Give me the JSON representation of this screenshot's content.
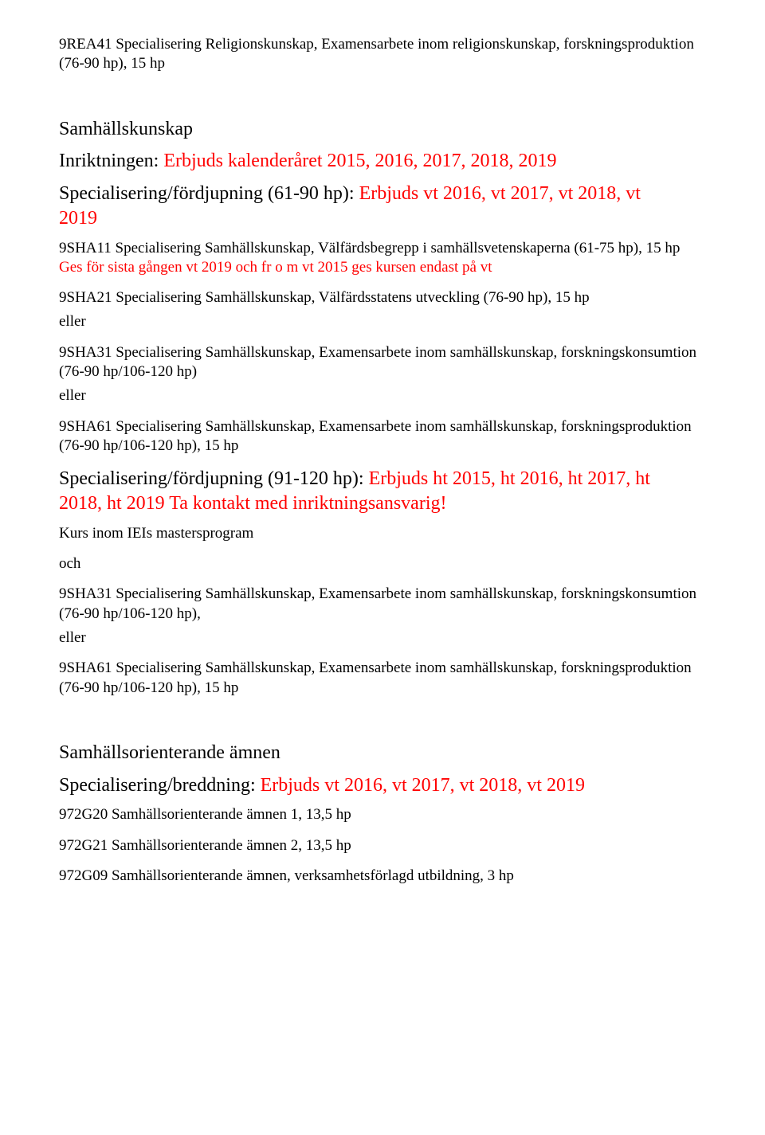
{
  "top": {
    "p1": "9REA41 Specialisering Religionskunskap, Examensarbete inom religionskunskap, forskningsproduktion (76-90 hp), 15 hp"
  },
  "samhallskunskap": {
    "heading": "Samhällskunskap",
    "inriktningen_prefix": "Inriktningen:",
    "inriktningen_red": " Erbjuds kalenderåret 2015, 2016, 2017, 2018, 2019",
    "spec61_prefix": "Specialisering/fördjupning (61-90 hp):",
    "spec61_red_a": " Erbjuds vt 2016, vt 2017, vt 2018, vt",
    "spec61_red_b": "2019",
    "p_9sha11_a": "9SHA11 Specialisering Samhällskunskap, Välfärdsbegrepp i samhällsvetenskaperna (61-75 hp), 15 hp ",
    "p_9sha11_red": "Ges för sista gången vt 2019 och fr o m vt 2015 ges kursen endast på vt",
    "p_9sha21": "9SHA21 Specialisering Samhällskunskap, Välfärdsstatens utveckling (76-90 hp), 15 hp",
    "eller1": "eller",
    "p_9sha31a": "9SHA31 Specialisering Samhällskunskap, Examensarbete inom samhällskunskap, forskningskonsumtion (76-90 hp/106-120 hp)",
    "eller2": "eller",
    "p_9sha61a": "9SHA61 Specialisering Samhällskunskap, Examensarbete inom samhällskunskap, forskningsproduktion (76-90 hp/106-120 hp), 15 hp",
    "spec91_prefix": "Specialisering/fördjupning (91-120 hp):",
    "spec91_red_a": " Erbjuds ht 2015, ht 2016, ht 2017, ht",
    "spec91_red_b": "2018, ht 2019 Ta kontakt med inriktningsansvarig!",
    "kurs": "Kurs inom IEIs mastersprogram",
    "och": "och",
    "p_9sha31b": "9SHA31 Specialisering Samhällskunskap, Examensarbete inom samhällskunskap, forskningskonsumtion (76-90 hp/106-120 hp),",
    "eller3": "eller",
    "p_9sha61b": "9SHA61 Specialisering Samhällskunskap, Examensarbete inom samhällskunskap, forskningsproduktion (76-90 hp/106-120 hp), 15 hp"
  },
  "samhallsorienterande": {
    "heading": "Samhällsorienterande ämnen",
    "specbredd_prefix": "Specialisering/breddning:",
    "specbredd_red": " Erbjuds vt 2016, vt 2017, vt 2018, vt 2019",
    "p1": "972G20 Samhällsorienterande ämnen 1, 13,5 hp",
    "p2": "972G21 Samhällsorienterande ämnen 2, 13,5 hp",
    "p3": "972G09 Samhällsorienterande ämnen, verksamhetsförlagd utbildning, 3 hp"
  }
}
